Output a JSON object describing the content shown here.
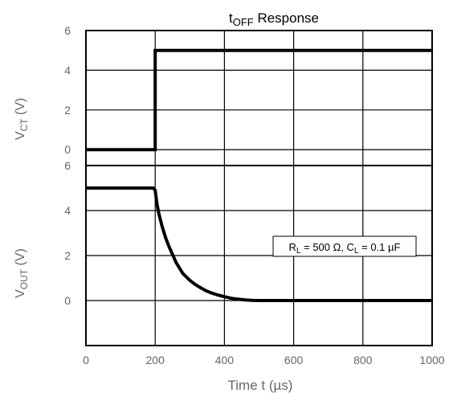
{
  "chart_data": {
    "type": "line",
    "title": {
      "main": "t",
      "sub": "OFF",
      "rest": " Response"
    },
    "xlabel": "Time  t (µs)",
    "xlim": [
      0,
      1000
    ],
    "x_ticks": [
      "0",
      "200",
      "400",
      "600",
      "800",
      "1000"
    ],
    "grid": true,
    "panels": [
      {
        "ylabel": {
          "main": "V",
          "sub": "CT",
          "rest": " (V)"
        },
        "ylim": [
          -0.8,
          6
        ],
        "y_ticks": [
          "0",
          "2",
          "4",
          "6"
        ],
        "series": [
          {
            "x": [
              0,
              200,
              200,
              1000
            ],
            "y": [
              0,
              0,
              5,
              5
            ]
          }
        ]
      },
      {
        "ylabel": {
          "main": "V",
          "sub": "OUT",
          "rest": " (V)"
        },
        "ylim": [
          -2,
          6
        ],
        "y_ticks": [
          "0",
          "2",
          "4",
          "6"
        ],
        "series": [
          {
            "x": [
              0,
              195,
              200,
              205,
              210,
              220,
              230,
              240,
              250,
              260,
              270,
              280,
              290,
              300,
              315,
              330,
              345,
              360,
              380,
              400,
              420,
              440,
              460,
              480,
              500,
              600,
              800,
              1000
            ],
            "y": [
              5,
              5,
              4.9,
              4.3,
              3.9,
              3.3,
              2.8,
              2.4,
              2.05,
              1.7,
              1.45,
              1.2,
              1.05,
              0.9,
              0.72,
              0.58,
              0.45,
              0.35,
              0.25,
              0.17,
              0.1,
              0.06,
              0.03,
              0.01,
              0,
              0,
              0,
              0
            ]
          }
        ],
        "annotation": {
          "parts": [
            "R",
            "L",
            " = 500 Ω, C",
            "L",
            " = 0.1 µF"
          ]
        }
      }
    ]
  }
}
